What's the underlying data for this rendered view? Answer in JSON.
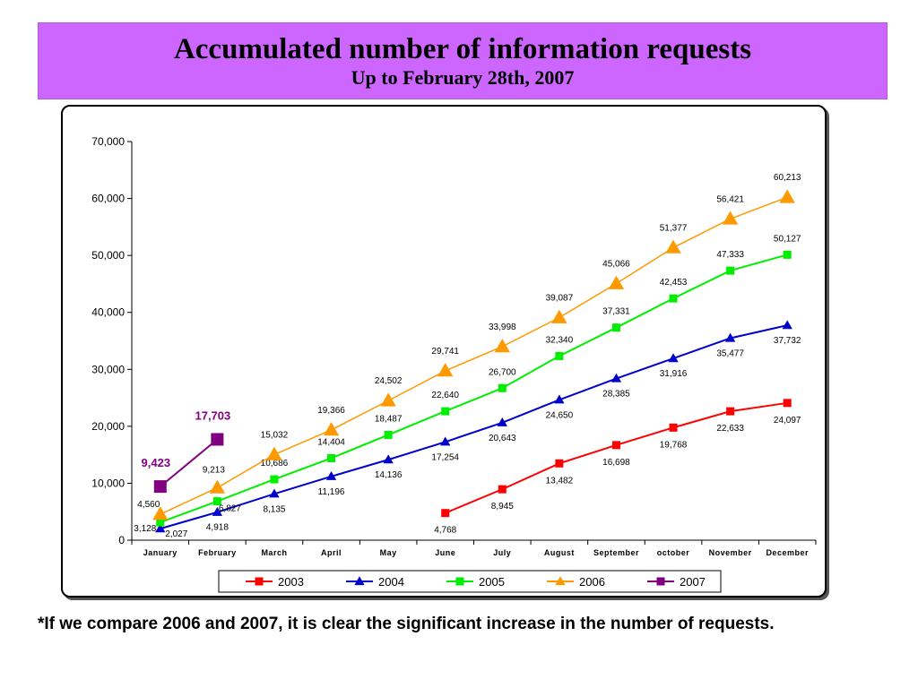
{
  "header": {
    "title": "Accumulated number of information requests",
    "subtitle": "Up to February 28th, 2007"
  },
  "footnote": "*If we compare 2006 and 2007, it is clear the significant increase in the number of requests.",
  "chart_data": {
    "type": "line",
    "title": "",
    "xlabel": "",
    "ylabel": "",
    "ylim": [
      0,
      70000
    ],
    "yticks": [
      0,
      10000,
      20000,
      30000,
      40000,
      50000,
      60000,
      70000
    ],
    "ytick_labels": [
      "0",
      "10,000",
      "20,000",
      "30,000",
      "40,000",
      "50,000",
      "60,000",
      "70,000"
    ],
    "grid": false,
    "legend_position": "bottom",
    "categories": [
      "January",
      "February",
      "March",
      "April",
      "May",
      "June",
      "July",
      "August",
      "September",
      "october",
      "November",
      "December"
    ],
    "series": [
      {
        "name": "2003",
        "color": "#ff0000",
        "marker": "square",
        "values": [
          null,
          null,
          null,
          null,
          null,
          4768,
          8945,
          13482,
          16698,
          19768,
          22633,
          24097
        ],
        "labels": [
          null,
          null,
          null,
          null,
          null,
          "4,768",
          "8,945",
          "13,482",
          "16,698",
          "19,768",
          "22,633",
          "24,097"
        ]
      },
      {
        "name": "2004",
        "color": "#0000cc",
        "marker": "triangle",
        "values": [
          2027,
          4918,
          8135,
          11196,
          14136,
          17254,
          20643,
          24650,
          28385,
          31916,
          35477,
          37732
        ],
        "labels": [
          "2,027",
          "4,918",
          "8,135",
          "11,196",
          "14,136",
          "17,254",
          "20,643",
          "24,650",
          "28,385",
          "31,916",
          "35,477",
          "37,732"
        ]
      },
      {
        "name": "2005",
        "color": "#00ee00",
        "marker": "square",
        "values": [
          3128,
          6827,
          10686,
          14404,
          18487,
          22640,
          26700,
          32340,
          37331,
          42453,
          47333,
          50127
        ],
        "labels": [
          "3,128",
          "6,827",
          "10,686",
          "14,404",
          "18,487",
          "22,640",
          "26,700",
          "32,340",
          "37,331",
          "42,453",
          "47,333",
          "50,127"
        ]
      },
      {
        "name": "2006",
        "color": "#ff9900",
        "marker": "triangle",
        "values": [
          4560,
          9213,
          15032,
          19366,
          24502,
          29741,
          33998,
          39087,
          45066,
          51377,
          56421,
          60213
        ],
        "labels": [
          "4,560",
          "9,213",
          "15,032",
          "19,366",
          "24,502",
          "29,741",
          "33,998",
          "39,087",
          "45,066",
          "51,377",
          "56,421",
          "60,213"
        ]
      },
      {
        "name": "2007",
        "color": "#800080",
        "marker": "square",
        "values": [
          9423,
          17703,
          null,
          null,
          null,
          null,
          null,
          null,
          null,
          null,
          null,
          null
        ],
        "labels": [
          "9,423",
          "17,703",
          null,
          null,
          null,
          null,
          null,
          null,
          null,
          null,
          null,
          null
        ]
      }
    ]
  }
}
